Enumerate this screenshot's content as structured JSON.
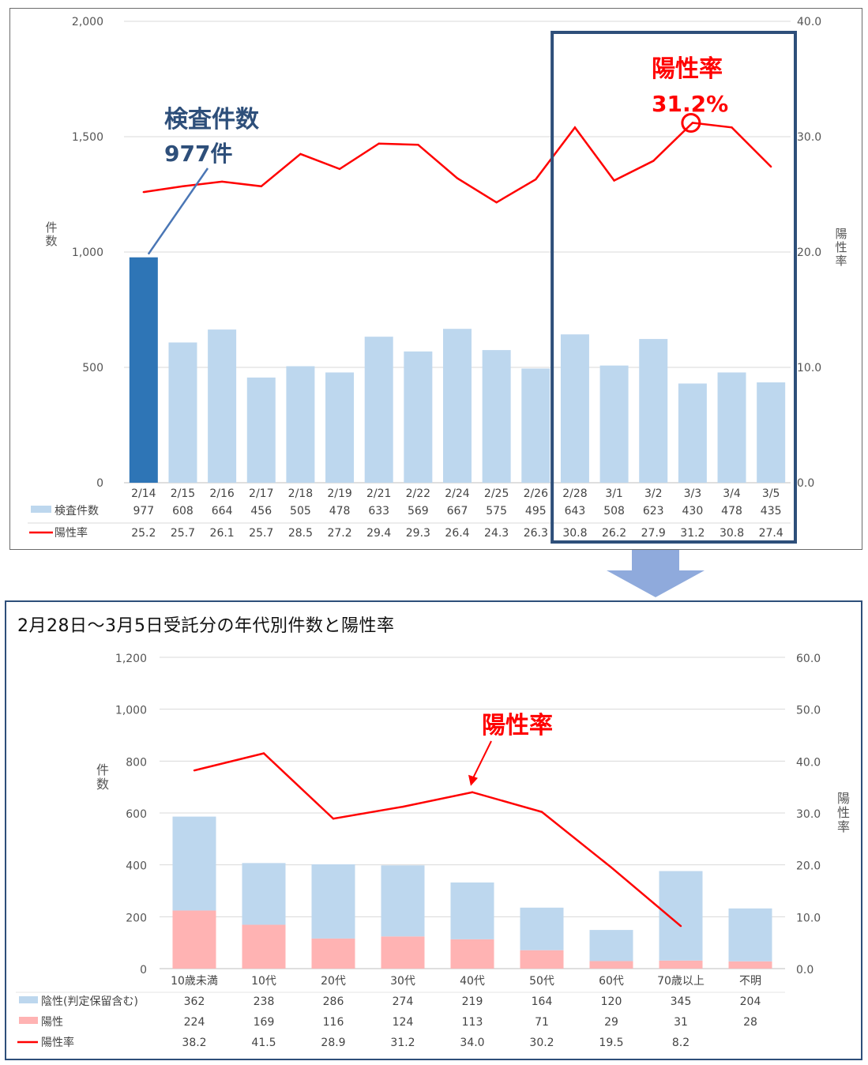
{
  "chart_data": [
    {
      "type": "bar",
      "categories": [
        "2/14",
        "2/15",
        "2/16",
        "2/17",
        "2/18",
        "2/19",
        "2/21",
        "2/22",
        "2/24",
        "2/25",
        "2/26",
        "2/28",
        "3/1",
        "3/2",
        "3/3",
        "3/4",
        "3/5"
      ],
      "series": [
        {
          "name": "検査件数",
          "type": "bar",
          "axis": "left",
          "values": [
            977,
            608,
            664,
            456,
            505,
            478,
            633,
            569,
            667,
            575,
            495,
            643,
            508,
            623,
            430,
            478,
            435
          ],
          "color": "#bdd7ee",
          "highlight_color": "#2e75b6",
          "highlight_index": 0
        },
        {
          "name": "陽性率",
          "type": "line",
          "axis": "right",
          "values": [
            25.2,
            25.7,
            26.1,
            25.7,
            28.5,
            27.2,
            29.4,
            29.3,
            26.4,
            24.3,
            26.3,
            30.8,
            26.2,
            27.9,
            31.2,
            30.8,
            27.4
          ],
          "color": "#ff0000"
        }
      ],
      "y_left": {
        "label": "件数",
        "min": 0,
        "max": 2000,
        "ticks": [
          "0",
          "500",
          "1,000",
          "1,500",
          "2,000"
        ]
      },
      "y_right": {
        "label": "陽性率",
        "min": 0,
        "max": 40,
        "ticks": [
          "0.0",
          "10.0",
          "20.0",
          "30.0",
          "40.0"
        ]
      },
      "grid": true,
      "table_rows": [
        {
          "label": "検査件数",
          "values": [
            "977",
            "608",
            "664",
            "456",
            "505",
            "478",
            "633",
            "569",
            "667",
            "575",
            "495",
            "643",
            "508",
            "623",
            "430",
            "478",
            "435"
          ]
        },
        {
          "label": "陽性率",
          "values": [
            "25.2",
            "25.7",
            "26.1",
            "25.7",
            "28.5",
            "27.2",
            "29.4",
            "29.3",
            "26.4",
            "24.3",
            "26.3",
            "30.8",
            "26.2",
            "27.9",
            "31.2",
            "30.8",
            "27.4"
          ]
        }
      ],
      "annotations": {
        "count_title": "検査件数",
        "count_value": "977件",
        "rate_title": "陽性率",
        "rate_value": "31.2%",
        "highlight_box_from": "2/28",
        "highlight_box_to": "3/5",
        "marker_at": "3/3"
      }
    },
    {
      "type": "bar",
      "stacked": true,
      "title": "2月28日～3月5日受託分の年代別件数と陽性率",
      "categories": [
        "10歳未満",
        "10代",
        "20代",
        "30代",
        "40代",
        "50代",
        "60代",
        "70歳以上",
        "不明"
      ],
      "series": [
        {
          "name": "陰性(判定保留含む)",
          "type": "bar",
          "axis": "left",
          "values": [
            362,
            238,
            286,
            274,
            219,
            164,
            120,
            345,
            204
          ],
          "color": "#bdd7ee"
        },
        {
          "name": "陽性",
          "type": "bar",
          "axis": "left",
          "values": [
            224,
            169,
            116,
            124,
            113,
            71,
            29,
            31,
            28
          ],
          "color": "#ffb3b3"
        },
        {
          "name": "陽性率",
          "type": "line",
          "axis": "right",
          "values": [
            38.2,
            41.5,
            28.9,
            31.2,
            34.0,
            30.2,
            19.5,
            8.2,
            null
          ],
          "color": "#ff0000"
        }
      ],
      "y_left": {
        "label": "件数",
        "min": 0,
        "max": 1200,
        "ticks": [
          "0",
          "200",
          "400",
          "600",
          "800",
          "1,000",
          "1,200"
        ]
      },
      "y_right": {
        "label": "陽性率",
        "min": 0,
        "max": 60,
        "ticks": [
          "0.0",
          "10.0",
          "20.0",
          "30.0",
          "40.0",
          "50.0",
          "60.0"
        ]
      },
      "grid": true,
      "table_rows": [
        {
          "label": "陰性(判定保留含む)",
          "values": [
            "362",
            "238",
            "286",
            "274",
            "219",
            "164",
            "120",
            "345",
            "204"
          ]
        },
        {
          "label": "陽性",
          "values": [
            "224",
            "169",
            "116",
            "124",
            "113",
            "71",
            "29",
            "31",
            "28"
          ]
        },
        {
          "label": "陽性率",
          "values": [
            "38.2",
            "41.5",
            "28.9",
            "31.2",
            "34.0",
            "30.2",
            "19.5",
            "8.2",
            ""
          ]
        }
      ],
      "annotations": {
        "rate_title": "陽性率",
        "arrow_target": "40代"
      }
    }
  ]
}
